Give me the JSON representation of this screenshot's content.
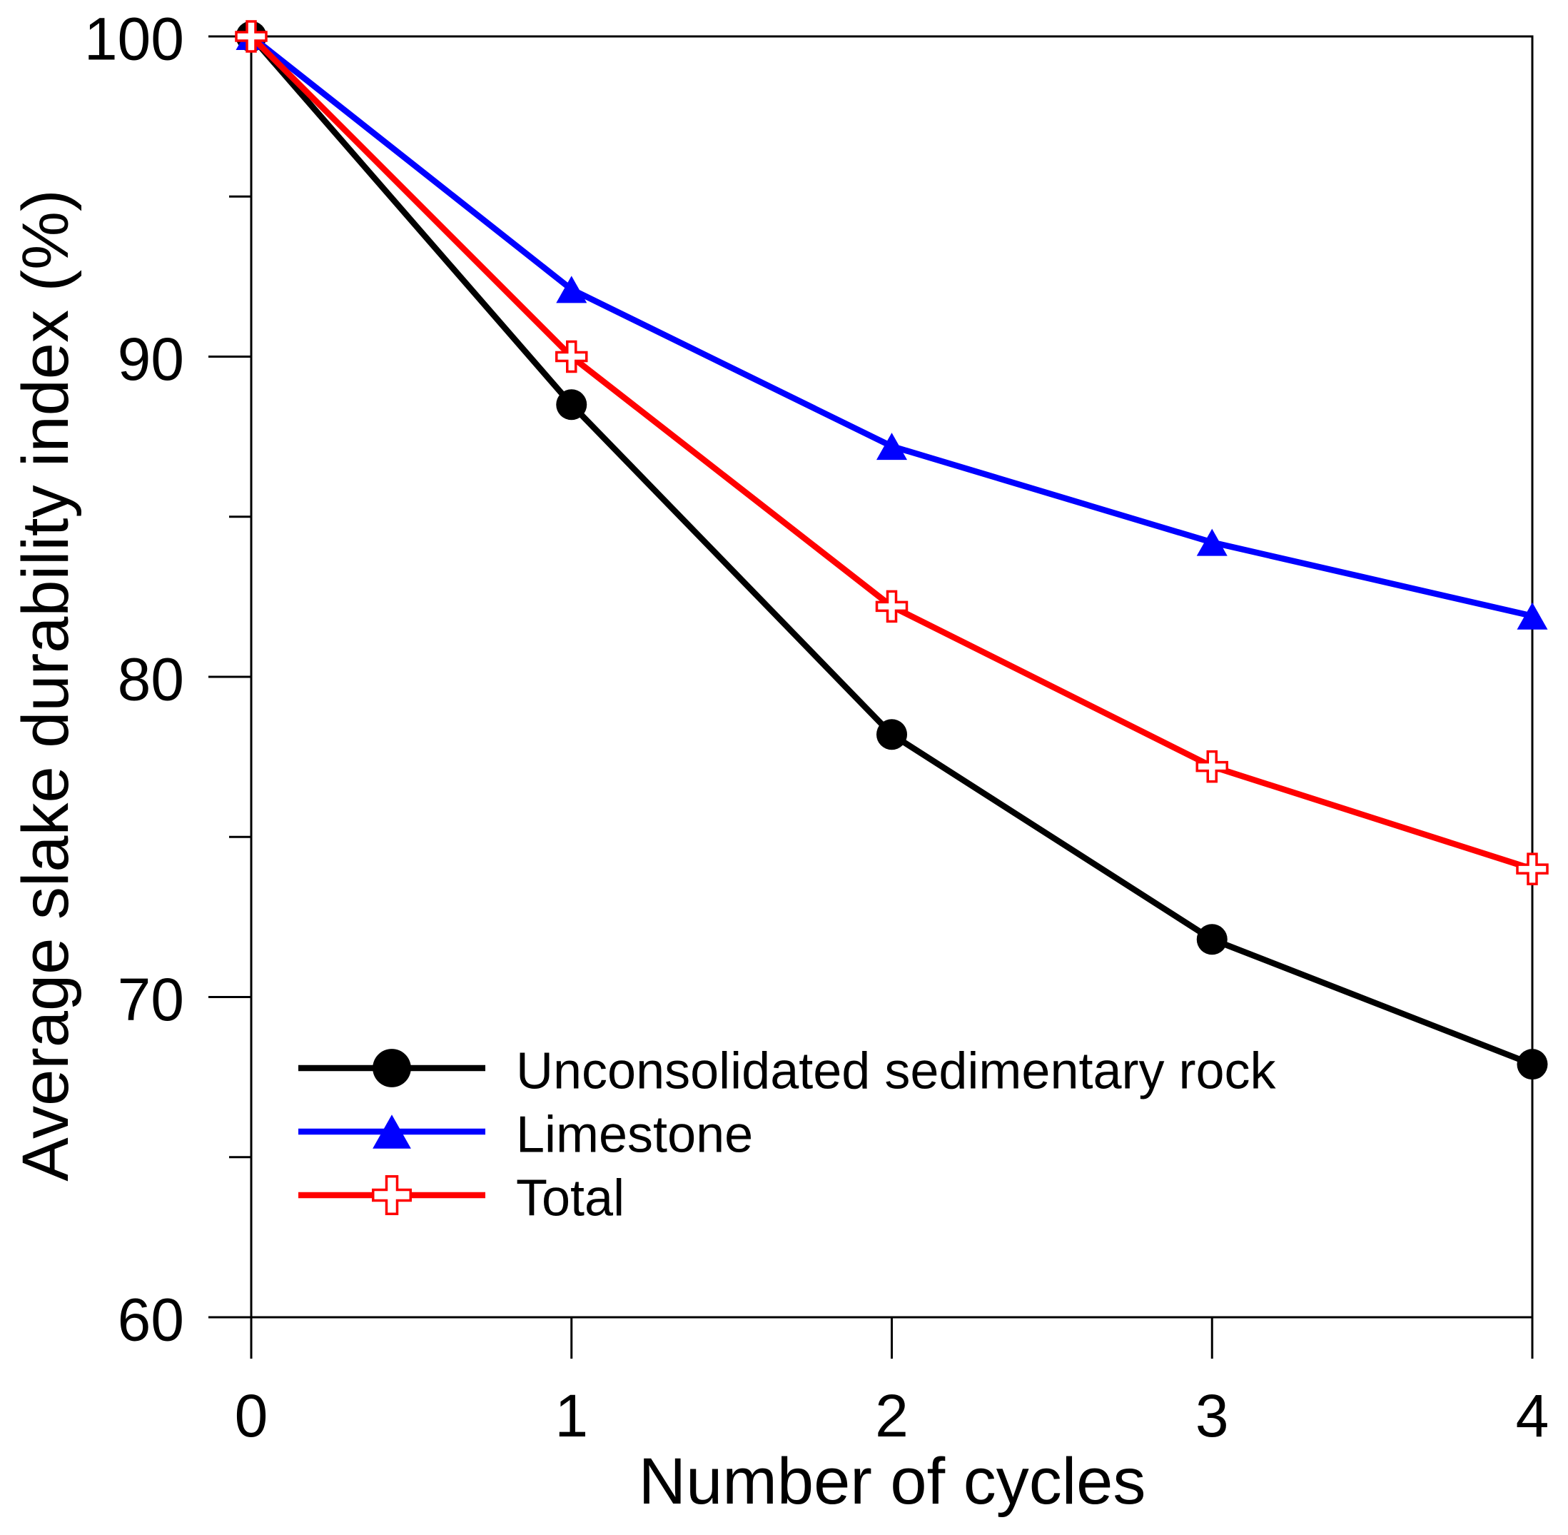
{
  "page": {
    "background": "#ffffff",
    "text_color": "#000000"
  },
  "chart_data": {
    "type": "line",
    "title": "",
    "xlabel": "Number of cycles",
    "ylabel": "Average slake durability index (%)",
    "x": [
      0,
      1,
      2,
      3,
      4
    ],
    "xlim": [
      0,
      4
    ],
    "ylim": [
      60,
      100
    ],
    "x_ticks": [
      0,
      1,
      2,
      3,
      4
    ],
    "y_ticks_major": [
      100,
      90,
      80,
      70,
      60
    ],
    "y_ticks_minor": [
      95,
      85,
      75,
      65
    ],
    "grid": false,
    "frame": "full-box",
    "legend_position": "inside bottom-left",
    "series": [
      {
        "name": "Unconsolidated sedimentary rock",
        "marker": "filled-circle",
        "color": "#000000",
        "values": [
          100,
          88.5,
          78.2,
          71.8,
          67.9
        ]
      },
      {
        "name": "Limestone",
        "marker": "filled-triangle",
        "color": "#0000ff",
        "values": [
          100,
          92.1,
          87.2,
          84.2,
          81.9
        ]
      },
      {
        "name": "Total",
        "marker": "open-plus",
        "color": "#ff0000",
        "values": [
          100,
          90,
          82.2,
          77.2,
          74
        ]
      }
    ]
  }
}
